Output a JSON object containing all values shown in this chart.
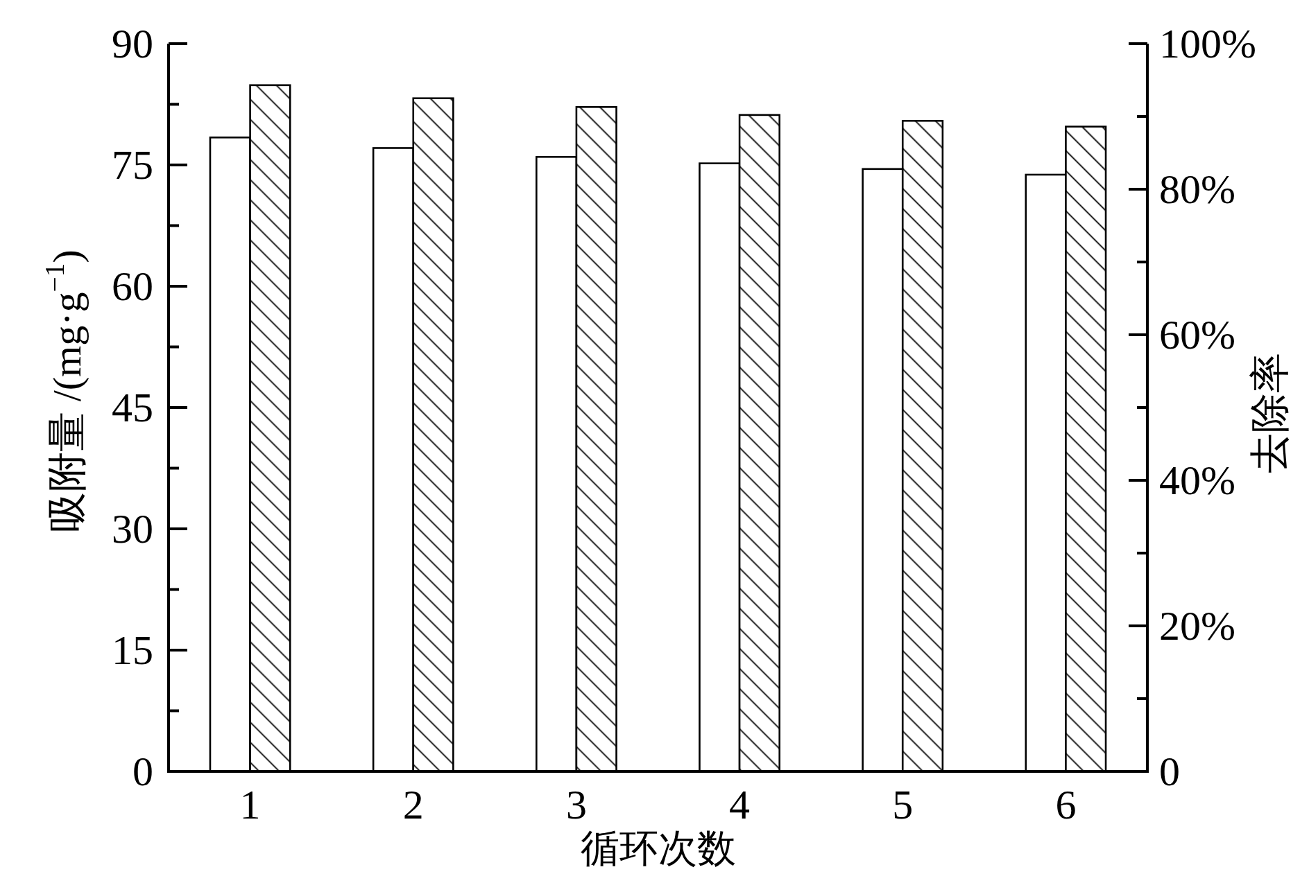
{
  "chart_data": {
    "type": "bar",
    "xlabel": "循环次数",
    "ylabel": "吸附量 /(mg·g$^{−1}$)",
    "y2label": "去除率",
    "categories": [
      "1",
      "2",
      "3",
      "4",
      "5",
      "6"
    ],
    "series": [
      {
        "color": "#ffffff",
        "values": [
          78.4,
          77.1,
          76.0,
          75.2,
          74.5,
          73.8
        ]
      },
      {
        "color": "#000000",
        "axis": "y2",
        "values": [
          94.3,
          92.5,
          91.3,
          90.2,
          89.4,
          88.6
        ]
      }
    ],
    "ylim": [
      0,
      90
    ],
    "yticks": [
      0,
      {
        "value": 7.5,
        "label": null
      },
      15,
      {
        "value": 22.5,
        "label": null
      },
      30,
      {
        "value": 37.5,
        "label": null
      },
      45,
      {
        "value": 52.5,
        "label": null
      },
      60,
      {
        "value": 67.5,
        "label": null
      },
      75,
      {
        "value": 82.5,
        "label": null
      },
      90
    ],
    "y2lim": [
      0,
      100
    ],
    "y2ticks": [
      0,
      {
        "value": 10,
        "label": null
      },
      {
        "value": 20,
        "label": "20%"
      },
      {
        "value": 30,
        "label": null
      },
      {
        "value": 40,
        "label": "40%"
      },
      {
        "value": 50,
        "label": null
      },
      {
        "value": 60,
        "label": "60%"
      },
      {
        "value": 70,
        "label": null
      },
      {
        "value": 80,
        "label": "80%"
      },
      {
        "value": 90,
        "label": null
      },
      {
        "value": 100,
        "label": "100%"
      }
    ]
  }
}
